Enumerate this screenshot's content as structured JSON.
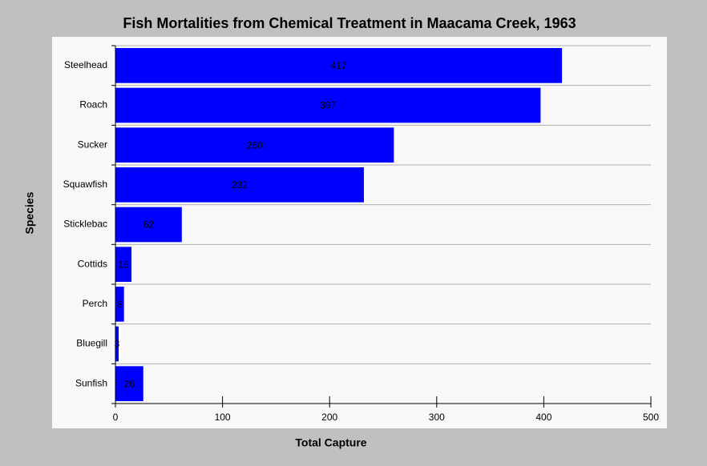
{
  "chart_data": {
    "type": "hbar",
    "title": "Fish Mortalities from Chemical Treatment in Maacama Creek, 1963",
    "x_label": "Total Capture",
    "y_label": "Species",
    "categories": [
      "Steelhead",
      "Roach",
      "Sucker",
      "Squawfish",
      "Sticklebac",
      "Cottids",
      "Perch",
      "Bluegill",
      "Sunfish"
    ],
    "values": [
      417,
      397,
      260,
      232,
      62,
      15,
      8,
      3,
      26
    ],
    "color": "#0000ff",
    "xlim": [
      0,
      500
    ],
    "xticks": [
      0,
      100,
      200,
      300,
      400,
      500
    ],
    "grid": true
  }
}
